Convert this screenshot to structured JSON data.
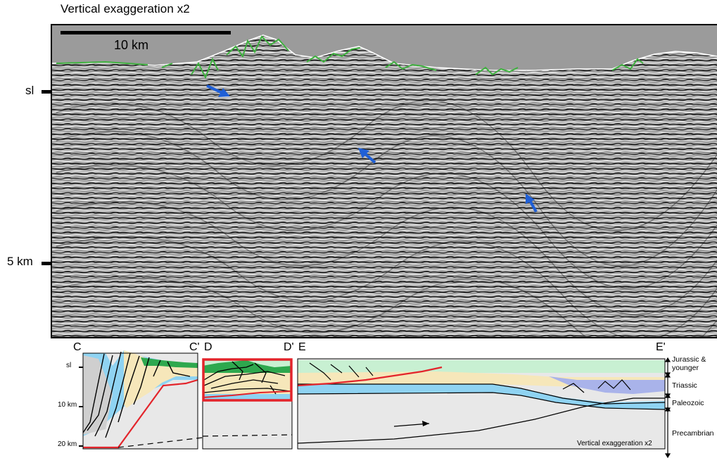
{
  "top_panel": {
    "title": "Vertical exaggeration x2",
    "scale_bar_label": "10 km",
    "depth_labels": [
      "sl",
      "5 km"
    ],
    "arrow_color": "#1f5fd6",
    "fault_color": "#3fb13f",
    "sky_color": "#9b9b9b"
  },
  "bottom_panel": {
    "section_labels": [
      "C",
      "C'",
      "D",
      "D'",
      "E",
      "E'"
    ],
    "depth_labels": [
      "sl",
      "10 km",
      "20 km"
    ],
    "unit_labels": [
      "Jurassic &",
      "younger",
      "Triassic",
      "Paleozoic",
      "Precambrian"
    ],
    "footer": "Vertical exaggeration x2",
    "colors": {
      "jurassic_green": "#c8f0d2",
      "jurassic_dark": "#2ea84e",
      "triassic": "#f6e7ba",
      "triassic_purple": "#a9b3ea",
      "paleozoic": "#8fd3f2",
      "precambrian": "#e8e8e8",
      "detachment": "#e3242b",
      "highlight_box": "#e3242b"
    }
  }
}
